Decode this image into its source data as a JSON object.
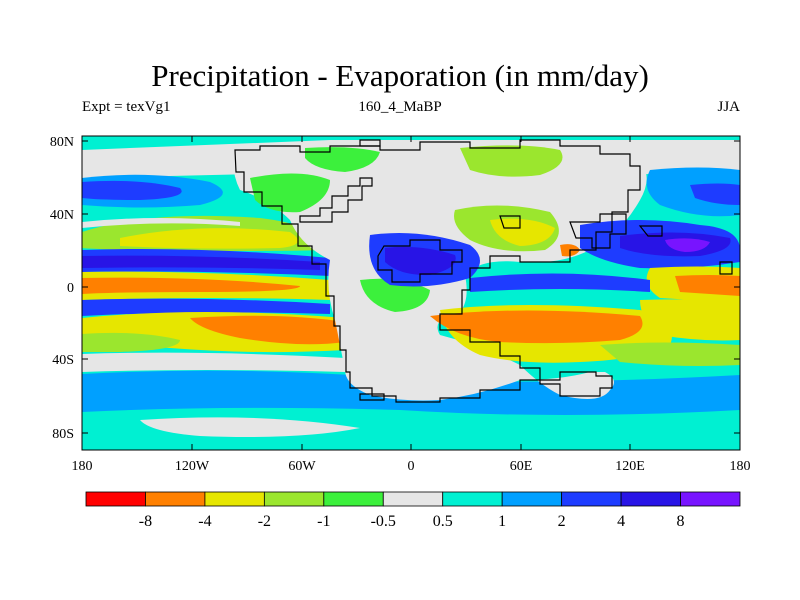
{
  "title": "Precipitation - Evaporation (in mm/day)",
  "left_label": "Expt = texVg1",
  "center_label": "160_4_MaBP",
  "right_label": "JJA",
  "lat_ticks": [
    "80N",
    "40N",
    "0",
    "40S",
    "80S"
  ],
  "lon_ticks": [
    "180",
    "120W",
    "60W",
    "0",
    "60E",
    "120E",
    "180"
  ],
  "colorbar": {
    "labels": [
      "-8",
      "-4",
      "-2",
      "-1",
      "-0.5",
      "0.5",
      "1",
      "2",
      "4",
      "8"
    ],
    "colors": [
      "#ff0000",
      "#ff8000",
      "#e6e600",
      "#9be62e",
      "#3cf03c",
      "#e6e6e6",
      "#00f0d2",
      "#00a0ff",
      "#1e3cff",
      "#2814e6",
      "#7814ff"
    ]
  }
}
